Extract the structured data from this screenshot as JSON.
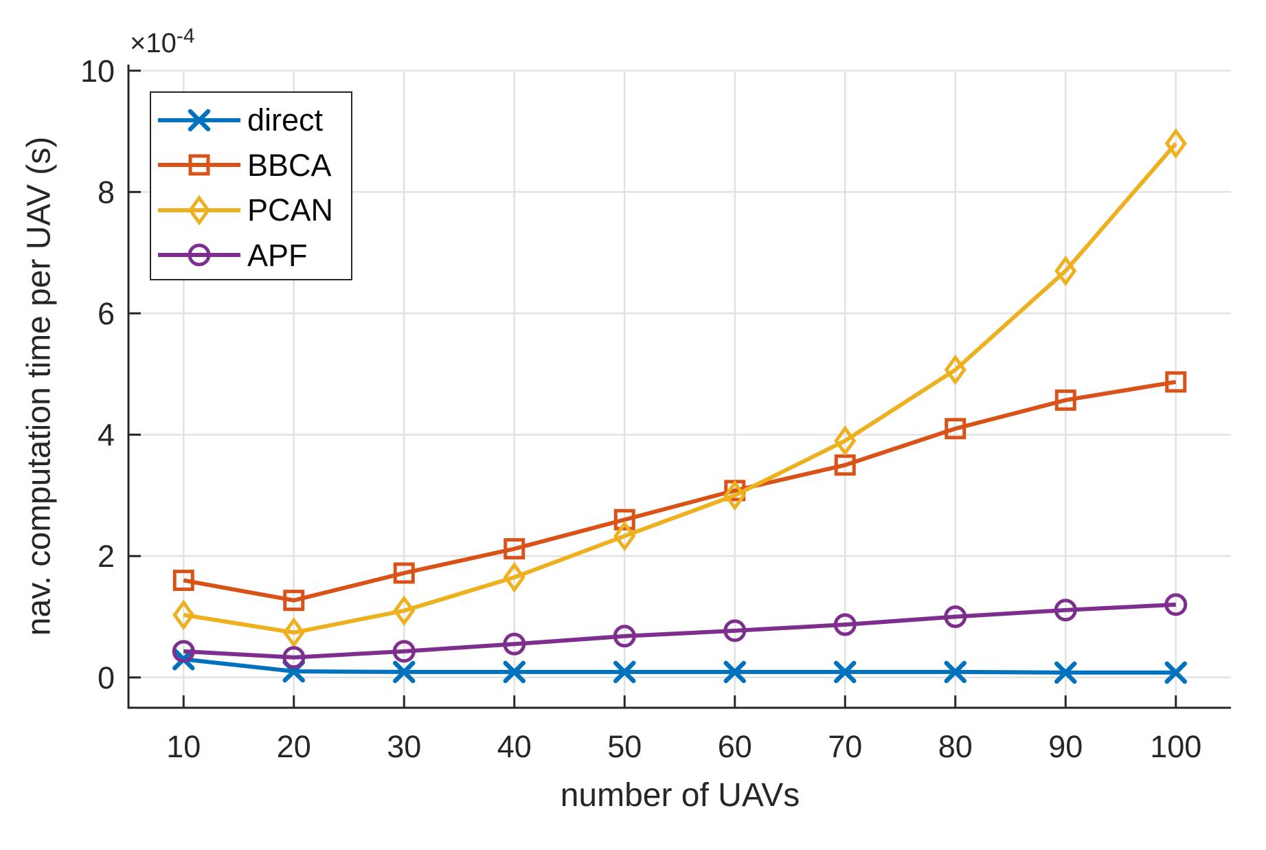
{
  "figure": {
    "background": "#ffffff",
    "y_axis_exponent": {
      "prefix": "×10",
      "exponent": "-4"
    }
  },
  "chart_data": {
    "type": "line",
    "title": "",
    "xlabel": "number of UAVs",
    "ylabel": "nav. computation time per UAV (s)",
    "y_unit_note": "values are in units of 1e-4 seconds",
    "x": [
      10,
      20,
      30,
      40,
      50,
      60,
      70,
      80,
      90,
      100
    ],
    "x_ticks": [
      10,
      20,
      30,
      40,
      50,
      60,
      70,
      80,
      90,
      100
    ],
    "y_ticks": [
      0,
      2,
      4,
      6,
      8,
      10
    ],
    "xlim": [
      5,
      105
    ],
    "ylim": [
      -0.5,
      10.1
    ],
    "grid": true,
    "legend_position": "top-left",
    "series": [
      {
        "name": "direct",
        "color": "#0072BD",
        "marker": "x",
        "values": [
          0.3,
          0.1,
          0.09,
          0.09,
          0.09,
          0.09,
          0.09,
          0.09,
          0.08,
          0.08
        ]
      },
      {
        "name": "BBCA",
        "color": "#D95319",
        "marker": "square",
        "values": [
          1.6,
          1.27,
          1.72,
          2.12,
          2.6,
          3.08,
          3.5,
          4.1,
          4.57,
          4.87
        ]
      },
      {
        "name": "PCAN",
        "color": "#EDB120",
        "marker": "diamond",
        "values": [
          1.03,
          0.74,
          1.1,
          1.65,
          2.33,
          3.0,
          3.9,
          5.07,
          6.7,
          8.8
        ]
      },
      {
        "name": "APF",
        "color": "#7E2F8E",
        "marker": "circle",
        "values": [
          0.43,
          0.33,
          0.43,
          0.55,
          0.68,
          0.77,
          0.87,
          1.0,
          1.11,
          1.2
        ]
      }
    ]
  },
  "style_colors": {
    "axis_text": "#262626",
    "spine": "#262626",
    "grid": "#e2e2e2",
    "legend_border": "#262626",
    "legend_bg": "#ffffff",
    "legend_text": "#0a0a0a"
  }
}
